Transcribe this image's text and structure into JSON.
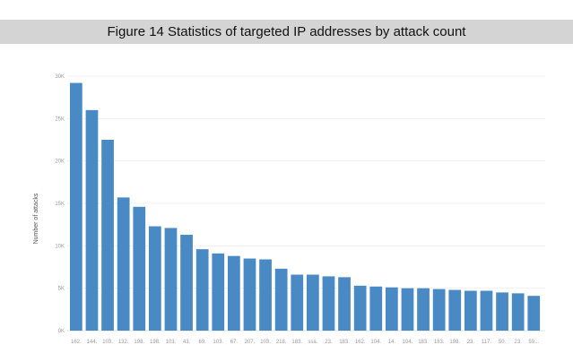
{
  "figure_title": "Figure 14 Statistics of targeted IP addresses by attack count",
  "chart_data": {
    "type": "bar",
    "title": "",
    "xlabel": "",
    "ylabel": "Number of attacks",
    "ylim": [
      0,
      30000
    ],
    "yticks": [
      0,
      5000,
      10000,
      15000,
      20000,
      25000,
      30000
    ],
    "ytick_labels": [
      "0K",
      "5K",
      "10K",
      "15K",
      "20K",
      "25K",
      "30K"
    ],
    "grid": true,
    "color": "#4a8ac4",
    "categories": [
      "162.",
      "144.",
      "103.",
      "132.",
      "198.",
      "198.",
      "103.",
      "43.",
      "69.",
      "103.",
      "67.",
      "207.",
      "103.",
      "218.",
      "183.",
      "ssa.",
      "23.",
      "183.",
      "162.",
      "104.",
      "14.",
      "104.",
      "183.",
      "183.",
      "198.",
      "23.",
      "117.",
      "50.",
      "23.",
      "59..."
    ],
    "values": [
      29200,
      26000,
      22500,
      15700,
      14600,
      12300,
      12100,
      11300,
      9600,
      9100,
      8800,
      8500,
      8400,
      7300,
      6600,
      6600,
      6400,
      6300,
      5300,
      5200,
      5100,
      5000,
      5000,
      4900,
      4800,
      4700,
      4700,
      4500,
      4400,
      4100
    ]
  }
}
